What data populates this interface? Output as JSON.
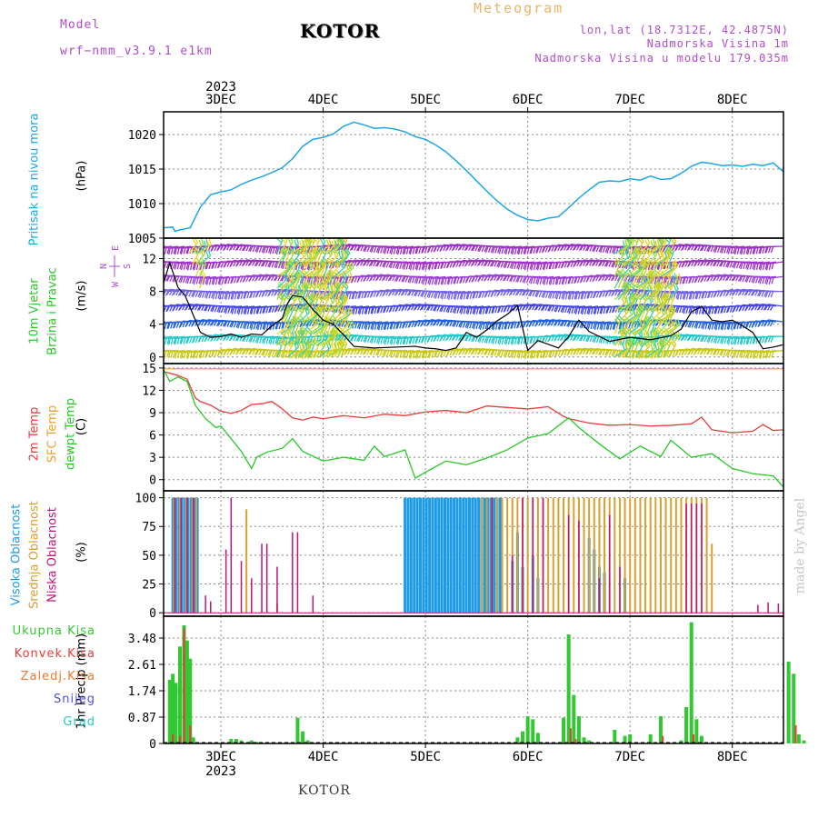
{
  "header": {
    "model_label": "Model",
    "model_name": "wrf−nmm_v3.9.1 e1km",
    "city": "KOTOR",
    "title": "Meteogram",
    "lonlat": "lon,lat (18.7312E, 42.4875N)",
    "altitude": "Nadmorska Visina 1m",
    "model_altitude": "Nadmorska Visina u modelu 179.035m",
    "footer_city": "KOTOR",
    "credit": "made by Angel"
  },
  "colors": {
    "pressure": "#1ea5e6",
    "temp2m": "#e83c3c",
    "sfc_temp": "#f0a030",
    "dewpoint": "#28c828",
    "high_cloud": "#1e9be6",
    "mid_cloud": "#d9a030",
    "low_cloud": "#c0147c",
    "precip_total": "#32c832",
    "precip_conv": "#e83c3c",
    "grid": "#888888"
  },
  "chart_data": [
    {
      "type": "line",
      "panel": "pressure",
      "ylabel_lines": [
        "Pritisak na nivou mora",
        "(hPa)"
      ],
      "yticks": [
        1005,
        1010,
        1015,
        1020
      ],
      "ylim": [
        1005,
        1023.3
      ],
      "xlim": [
        -0.56,
        5.5
      ],
      "x_day_ticks": [
        0,
        1,
        2,
        3,
        4,
        5
      ],
      "x_day_labels": [
        "3DEC",
        "4DEC",
        "5DEC",
        "6DEC",
        "7DEC",
        "8DEC"
      ],
      "top_year": "2023",
      "series": [
        {
          "x": [
            -0.56,
            -0.47,
            -0.45,
            -0.4,
            -0.3,
            -0.25,
            -0.2,
            -0.1,
            0.0,
            0.1,
            0.2,
            0.3,
            0.4,
            0.5,
            0.6,
            0.7,
            0.75,
            0.8,
            0.9,
            1.0,
            1.1,
            1.2,
            1.3,
            1.4,
            1.5,
            1.6,
            1.7,
            1.8,
            1.9,
            2.0,
            2.1,
            2.2,
            2.3,
            2.4,
            2.5,
            2.6,
            2.7,
            2.8,
            2.9,
            3.0,
            3.1,
            3.2,
            3.3,
            3.4,
            3.5,
            3.6,
            3.7,
            3.8,
            3.9,
            4.0,
            4.1,
            4.2,
            4.3,
            4.4,
            4.5,
            4.6,
            4.7,
            4.8,
            4.9,
            5.0,
            5.1,
            5.2,
            5.3,
            5.4,
            5.5
          ],
          "y": [
            1006.5,
            1006.6,
            1006.0,
            1006.2,
            1006.5,
            1008.0,
            1009.5,
            1011.3,
            1011.7,
            1012.0,
            1012.8,
            1013.4,
            1013.9,
            1014.5,
            1015.2,
            1016.5,
            1017.4,
            1018.3,
            1019.3,
            1019.6,
            1020.1,
            1021.2,
            1021.8,
            1021.4,
            1020.9,
            1021.0,
            1020.8,
            1020.4,
            1019.7,
            1019.3,
            1018.5,
            1017.5,
            1016.2,
            1014.8,
            1013.3,
            1011.8,
            1010.4,
            1009.2,
            1008.3,
            1007.7,
            1007.5,
            1007.9,
            1008.1,
            1009.4,
            1010.8,
            1012.0,
            1013.1,
            1013.3,
            1013.2,
            1013.6,
            1013.4,
            1014.0,
            1013.5,
            1013.6,
            1014.4,
            1015.4,
            1016.0,
            1015.8,
            1015.5,
            1015.6,
            1015.4,
            1015.7,
            1015.5,
            1015.9,
            1014.6
          ]
        }
      ]
    },
    {
      "type": "line",
      "panel": "wind",
      "ylabel_lines": [
        "10m Vjetar",
        "Brzina i Pravac",
        "(m/s)"
      ],
      "compass": {
        "n": "N",
        "s": "S",
        "e": "E",
        "w": "W"
      },
      "yticks": [
        0,
        4,
        8,
        12
      ],
      "ylim": [
        -0.8,
        14.5
      ],
      "series": [
        {
          "name": "speed",
          "x": [
            -0.56,
            -0.5,
            -0.42,
            -0.35,
            -0.3,
            -0.2,
            -0.1,
            0.0,
            0.1,
            0.2,
            0.3,
            0.4,
            0.5,
            0.6,
            0.65,
            0.7,
            0.8,
            0.9,
            1.0,
            1.1,
            1.2,
            1.3,
            1.5,
            1.7,
            1.9,
            2.0,
            2.1,
            2.2,
            2.3,
            2.4,
            2.5,
            2.6,
            2.7,
            2.8,
            2.9,
            3.0,
            3.1,
            3.3,
            3.4,
            3.5,
            3.6,
            3.8,
            4.0,
            4.2,
            4.4,
            4.5,
            4.6,
            4.7,
            4.8,
            4.9,
            5.0,
            5.1,
            5.2,
            5.3,
            5.4,
            5.5
          ],
          "y": [
            9,
            11.5,
            8.5,
            7.5,
            6,
            3,
            2.4,
            2.5,
            2.8,
            2.4,
            2.8,
            2.7,
            3.8,
            4.7,
            6.5,
            7.5,
            7.3,
            5.8,
            4.5,
            4.0,
            2.7,
            1.3,
            1.1,
            1.2,
            1.3,
            1.1,
            1.0,
            0.8,
            1.1,
            3.0,
            2.4,
            3.3,
            4.4,
            5.2,
            6.3,
            0.8,
            2.0,
            1.1,
            2.5,
            4.5,
            3.1,
            1.9,
            2.4,
            2.1,
            2.6,
            3.4,
            5.5,
            6.2,
            4.5,
            4.3,
            4.5,
            3.8,
            3.0,
            1.0,
            1.2,
            1.5
          ]
        }
      ]
    },
    {
      "type": "line",
      "panel": "temperature",
      "ylabel_lines": [
        "2m Temp",
        "SFC Temp",
        "dewpt Temp",
        "(C)"
      ],
      "yticks": [
        0,
        3,
        6,
        9,
        12,
        15
      ],
      "ylim": [
        -1.5,
        15.6
      ],
      "series": [
        {
          "name": "SFC Temp",
          "x": [
            -0.56,
            5.5
          ],
          "y": [
            14.9,
            14.9
          ]
        },
        {
          "name": "2m Temp",
          "x": [
            -0.56,
            -0.5,
            -0.42,
            -0.33,
            -0.25,
            -0.2,
            -0.1,
            0.0,
            0.1,
            0.2,
            0.3,
            0.4,
            0.5,
            0.6,
            0.7,
            0.8,
            0.9,
            1.0,
            1.2,
            1.4,
            1.6,
            1.8,
            2.0,
            2.2,
            2.4,
            2.6,
            2.8,
            3.0,
            3.2,
            3.35,
            3.4,
            3.6,
            3.8,
            4.0,
            4.2,
            4.4,
            4.6,
            4.7,
            4.8,
            5.0,
            5.2,
            5.3,
            5.4,
            5.5
          ],
          "y": [
            14.5,
            14.3,
            14.0,
            13.5,
            11.0,
            10.5,
            10.0,
            9.2,
            8.9,
            9.3,
            10.1,
            10.2,
            10.5,
            9.5,
            8.3,
            8.0,
            8.4,
            8.2,
            8.6,
            8.3,
            8.8,
            8.6,
            9.1,
            9.3,
            9.0,
            9.9,
            9.7,
            9.5,
            9.8,
            8.5,
            8.2,
            7.6,
            7.3,
            7.4,
            7.2,
            7.3,
            7.5,
            8.4,
            6.7,
            6.3,
            6.5,
            7.4,
            6.6,
            6.7
          ]
        },
        {
          "name": "dewpt Temp",
          "x": [
            -0.56,
            -0.5,
            -0.42,
            -0.33,
            -0.25,
            -0.15,
            -0.05,
            0.0,
            0.1,
            0.2,
            0.3,
            0.35,
            0.45,
            0.6,
            0.7,
            0.8,
            1.0,
            1.2,
            1.4,
            1.5,
            1.6,
            1.8,
            1.9,
            2.0,
            2.2,
            2.4,
            2.6,
            2.8,
            3.0,
            3.2,
            3.4,
            3.5,
            3.7,
            3.9,
            4.1,
            4.3,
            4.4,
            4.6,
            4.8,
            5.0,
            5.2,
            5.4,
            5.5
          ],
          "y": [
            14.8,
            13.2,
            13.8,
            13.2,
            10.0,
            8.2,
            7.0,
            7.2,
            5.5,
            3.8,
            1.5,
            3.0,
            3.7,
            4.2,
            5.5,
            3.8,
            2.5,
            3.0,
            2.6,
            4.5,
            3.1,
            4.0,
            0.2,
            1.0,
            2.5,
            2.0,
            2.9,
            4.0,
            5.6,
            6.2,
            8.3,
            7.0,
            4.8,
            2.8,
            4.5,
            3.1,
            5.3,
            3.0,
            3.5,
            1.5,
            0.8,
            0.5,
            -1.0
          ]
        }
      ]
    },
    {
      "type": "bar",
      "panel": "clouds",
      "ylabel_lines": [
        "Visoka Oblacnost",
        "Srednja Oblacnost",
        "Niska Oblacnost",
        "(%)"
      ],
      "yticks": [
        0,
        25,
        50,
        75,
        100
      ],
      "ylim": [
        -3,
        106
      ],
      "series": [
        {
          "name": "Visoka Oblacnost",
          "x": [
            -0.47,
            -0.44,
            -0.41,
            -0.38,
            -0.35,
            -0.32,
            -0.29,
            -0.26,
            -0.23,
            1.8,
            1.83,
            1.86,
            1.89,
            1.92,
            1.95,
            1.98,
            2.01,
            2.04,
            2.07,
            2.1,
            2.13,
            2.16,
            2.19,
            2.22,
            2.25,
            2.28,
            2.31,
            2.34,
            2.37,
            2.4,
            2.43,
            2.46,
            2.49,
            2.52,
            2.55,
            2.58,
            2.61,
            2.64,
            2.67,
            2.7,
            2.73,
            2.85,
            2.9,
            2.95,
            3.05,
            3.1,
            3.6,
            3.65,
            3.7,
            3.75,
            3.95
          ],
          "values": [
            100,
            100,
            100,
            100,
            100,
            100,
            100,
            100,
            100,
            100,
            100,
            100,
            100,
            100,
            100,
            100,
            100,
            100,
            100,
            100,
            100,
            100,
            100,
            100,
            100,
            100,
            100,
            100,
            100,
            100,
            100,
            100,
            100,
            100,
            100,
            100,
            100,
            100,
            100,
            100,
            100,
            45,
            70,
            40,
            50,
            30,
            65,
            55,
            40,
            35,
            30
          ]
        },
        {
          "name": "Srednja Oblacnost",
          "x": [
            -0.46,
            -0.4,
            -0.34,
            -0.28,
            -0.24,
            0.25,
            0.55,
            2.55,
            2.6,
            2.65,
            2.7,
            2.75,
            2.8,
            2.85,
            2.9,
            2.95,
            3.0,
            3.05,
            3.1,
            3.15,
            3.2,
            3.25,
            3.3,
            3.35,
            3.4,
            3.45,
            3.5,
            3.55,
            3.6,
            3.65,
            3.7,
            3.75,
            3.8,
            3.85,
            3.9,
            3.95,
            4.0,
            4.05,
            4.1,
            4.15,
            4.2,
            4.25,
            4.3,
            4.35,
            4.4,
            4.45,
            4.5,
            4.55,
            4.6,
            4.65,
            4.7,
            4.75,
            4.8
          ],
          "values": [
            100,
            100,
            100,
            100,
            100,
            90,
            8,
            100,
            100,
            100,
            100,
            100,
            100,
            100,
            100,
            100,
            100,
            100,
            100,
            100,
            100,
            100,
            100,
            100,
            100,
            100,
            100,
            100,
            100,
            100,
            100,
            100,
            100,
            100,
            100,
            100,
            100,
            100,
            100,
            100,
            100,
            100,
            100,
            100,
            100,
            100,
            100,
            100,
            100,
            100,
            100,
            100,
            60
          ]
        },
        {
          "name": "Niska Oblacnost",
          "x": [
            -0.45,
            -0.39,
            -0.33,
            -0.27,
            -0.15,
            -0.1,
            0.05,
            0.1,
            0.2,
            0.3,
            0.4,
            0.45,
            0.55,
            0.7,
            0.75,
            0.9,
            2.65,
            2.85,
            2.95,
            3.05,
            3.15,
            3.4,
            3.5,
            3.7,
            3.8,
            3.9,
            4.55,
            4.6,
            4.65,
            4.7,
            5.25,
            5.35,
            5.45
          ],
          "values": [
            100,
            100,
            100,
            100,
            15,
            10,
            55,
            100,
            45,
            30,
            60,
            60,
            40,
            70,
            70,
            15,
            100,
            50,
            100,
            100,
            100,
            85,
            80,
            30,
            85,
            40,
            95,
            95,
            95,
            95,
            7,
            9,
            8
          ]
        }
      ]
    },
    {
      "type": "bar",
      "panel": "precip",
      "ylabel_lines": [
        "1hr Precip (mm)"
      ],
      "legend": [
        "Ukupna Kisa",
        "Konvek.Kisa",
        "Zaledj.Kisa",
        "Snijeg",
        "Grad"
      ],
      "yticks": [
        0,
        0.87,
        1.74,
        2.61,
        3.48
      ],
      "ytick_labels": [
        "0",
        "0.87",
        "1.74",
        "2.61",
        "3.48"
      ],
      "ylim": [
        0,
        4.2
      ],
      "bottom_year": "2023",
      "series": [
        {
          "name": "Ukupna Kisa",
          "x": [
            -0.5,
            -0.47,
            -0.44,
            -0.4,
            -0.36,
            -0.33,
            -0.3,
            -0.27,
            0.1,
            0.15,
            0.2,
            0.3,
            0.35,
            0.75,
            0.8,
            0.85,
            2.9,
            2.95,
            3.0,
            3.05,
            3.1,
            3.35,
            3.4,
            3.45,
            3.5,
            3.55,
            3.6,
            3.85,
            3.95,
            4.0,
            4.2,
            4.3,
            4.5,
            4.55,
            4.6,
            4.65,
            4.7,
            5.55,
            5.6,
            5.65,
            5.7
          ],
          "values": [
            2.1,
            2.3,
            2.0,
            3.2,
            3.9,
            3.4,
            2.8,
            0.2,
            0.15,
            0.15,
            0.1,
            0.1,
            0.05,
            0.85,
            0.4,
            0.1,
            0.2,
            0.4,
            0.9,
            0.8,
            0.35,
            0.85,
            3.6,
            1.6,
            0.9,
            0.2,
            0.1,
            0.45,
            0.25,
            0.3,
            0.3,
            0.9,
            0.1,
            1.2,
            4.0,
            0.8,
            0.25,
            2.7,
            2.3,
            0.3,
            0.1
          ]
        },
        {
          "name": "Konvek.Kisa",
          "x": [
            -0.47,
            -0.4,
            -0.36,
            -0.3,
            3.42,
            3.47,
            4.32,
            4.62,
            5.62
          ],
          "values": [
            0.3,
            0.25,
            3.8,
            0.6,
            0.5,
            0.15,
            0.25,
            0.3,
            0.6
          ]
        }
      ]
    }
  ]
}
